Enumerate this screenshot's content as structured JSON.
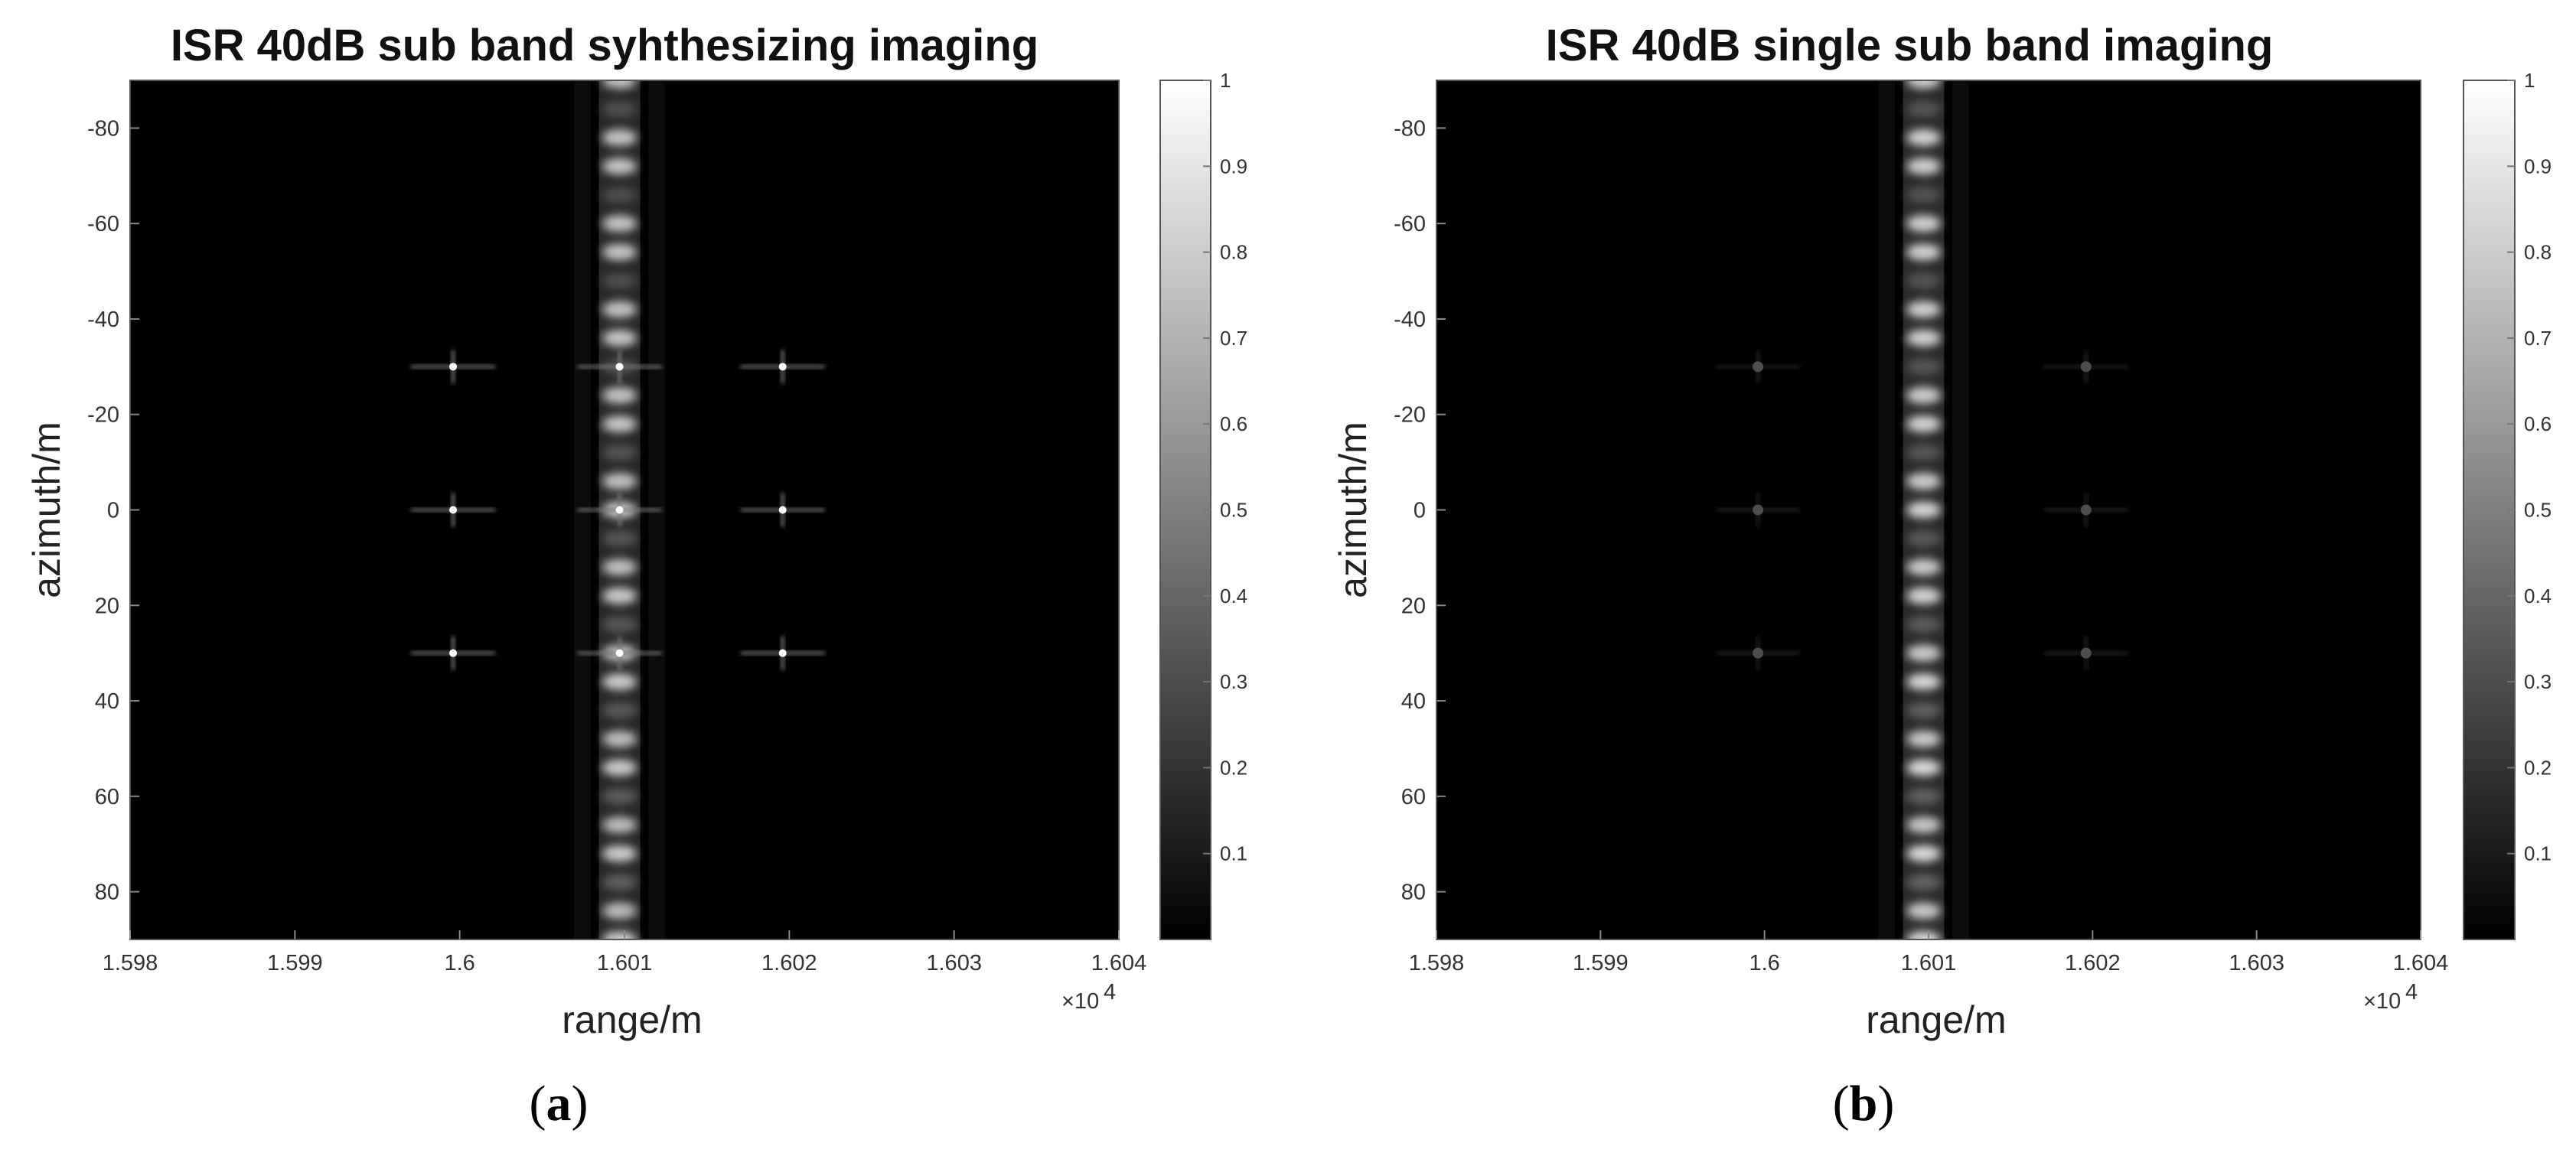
{
  "chart_data": [
    {
      "type": "heatmap",
      "panel_label": "a",
      "title": "ISR 40dB sub band syhthesizing imaging",
      "xlabel": "range/m",
      "ylabel": "azimuth/m",
      "x_exponent_label": "×10",
      "x_exponent_power": "4",
      "xlim": [
        1.598,
        1.604
      ],
      "ylim": [
        -90,
        90
      ],
      "y_reversed": true,
      "x_ticks": [
        "1.598",
        "1.599",
        "1.6",
        "1.601",
        "1.602",
        "1.603",
        "1.604"
      ],
      "y_ticks": [
        "-80",
        "-60",
        "-40",
        "-20",
        "0",
        "20",
        "40",
        "60",
        "80"
      ],
      "colorbar": {
        "min": 0,
        "max": 1,
        "ticks": [
          "0.1",
          "0.2",
          "0.3",
          "0.4",
          "0.5",
          "0.6",
          "0.7",
          "0.8",
          "0.9",
          "1"
        ]
      },
      "colormap": "gray",
      "stripe": {
        "x_center": 1.60097,
        "width": 0.00025,
        "intensity": 0.85
      },
      "point_targets": [
        {
          "x": 1.59996,
          "y": -30,
          "intensity": 1.0
        },
        {
          "x": 1.59996,
          "y": 0,
          "intensity": 1.0
        },
        {
          "x": 1.59996,
          "y": 30,
          "intensity": 1.0
        },
        {
          "x": 1.60097,
          "y": -30,
          "intensity": 1.0
        },
        {
          "x": 1.60097,
          "y": 0,
          "intensity": 1.0
        },
        {
          "x": 1.60097,
          "y": 30,
          "intensity": 1.0
        },
        {
          "x": 1.60196,
          "y": -30,
          "intensity": 1.0
        },
        {
          "x": 1.60196,
          "y": 0,
          "intensity": 1.0
        },
        {
          "x": 1.60196,
          "y": 30,
          "intensity": 1.0
        }
      ]
    },
    {
      "type": "heatmap",
      "panel_label": "b",
      "title": "ISR 40dB single sub band imaging",
      "xlabel": "range/m",
      "ylabel": "azimuth/m",
      "x_exponent_label": "×10",
      "x_exponent_power": "4",
      "xlim": [
        1.598,
        1.604
      ],
      "ylim": [
        -90,
        90
      ],
      "y_reversed": true,
      "x_ticks": [
        "1.598",
        "1.599",
        "1.6",
        "1.601",
        "1.602",
        "1.603",
        "1.604"
      ],
      "y_ticks": [
        "-80",
        "-60",
        "-40",
        "-20",
        "0",
        "20",
        "40",
        "60",
        "80"
      ],
      "colorbar": {
        "min": 0,
        "max": 1,
        "ticks": [
          "0.1",
          "0.2",
          "0.3",
          "0.4",
          "0.5",
          "0.6",
          "0.7",
          "0.8",
          "0.9",
          "1"
        ]
      },
      "colormap": "gray",
      "stripe": {
        "x_center": 1.60097,
        "width": 0.00025,
        "intensity": 0.9
      },
      "point_targets": [
        {
          "x": 1.59996,
          "y": -30,
          "intensity": 0.3
        },
        {
          "x": 1.59996,
          "y": 0,
          "intensity": 0.3
        },
        {
          "x": 1.59996,
          "y": 30,
          "intensity": 0.3
        },
        {
          "x": 1.60196,
          "y": -30,
          "intensity": 0.3
        },
        {
          "x": 1.60196,
          "y": 0,
          "intensity": 0.3
        },
        {
          "x": 1.60196,
          "y": 30,
          "intensity": 0.3
        }
      ]
    }
  ],
  "captions": [
    "a",
    "b"
  ]
}
